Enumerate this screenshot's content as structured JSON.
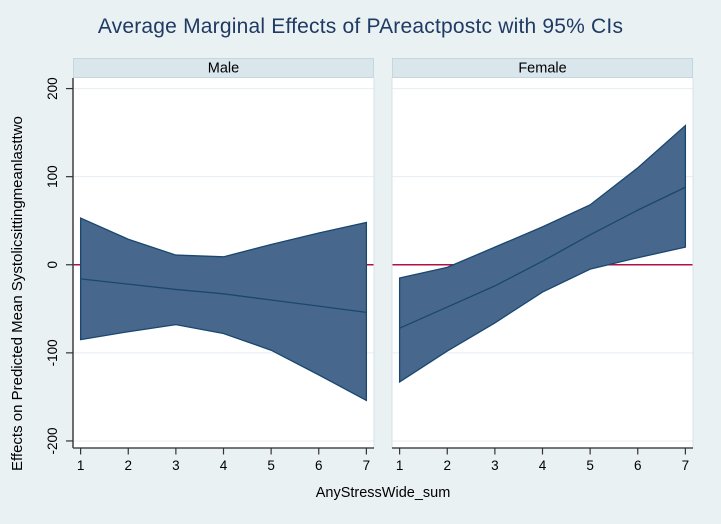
{
  "title": "Average Marginal Effects of PAreactpostc with 95% CIs",
  "axes": {
    "x_label": "AnyStressWide_sum",
    "y_label": "Effects on Predicted Mean Systolicsittingmeanlasttwo"
  },
  "colors": {
    "background": "#eaf1f3",
    "strip_bg": "#d9e6ec",
    "strip_border": "#c6d6de",
    "plot_bg": "#ffffff",
    "gridline": "#e4eef2",
    "panel_edge": "#d7e2e8",
    "band_fill": "#47688c",
    "band_edge": "#1a476f",
    "zero_line": "#b00f47",
    "axis_line": "#4a4a4a",
    "tick": "#333333",
    "title_color": "#1f3a63",
    "text": "#000000"
  },
  "chart_data": {
    "type": "area",
    "title": "Average Marginal Effects of PAreactpostc with 95% CIs",
    "xlabel": "AnyStressWide_sum",
    "ylabel": "Effects on Predicted Mean Systolicsittingmeanlasttwo",
    "grid": true,
    "legend": "none",
    "zero_line": 0,
    "x": [
      1,
      2,
      3,
      4,
      5,
      6,
      7
    ],
    "x_ticks": [
      1,
      2,
      3,
      4,
      5,
      6,
      7
    ],
    "y_ticks": [
      200,
      100,
      0,
      -100,
      -200
    ],
    "xlim": [
      0.84,
      7.16
    ],
    "ylim": [
      -208,
      212
    ],
    "panels": [
      {
        "label": "Male",
        "series": [
          {
            "name": "effect",
            "values": [
              -16,
              -22,
              -28,
              -33,
              -40,
              -47,
              -54
            ]
          },
          {
            "name": "ci_upper",
            "values": [
              53,
              29,
              11,
              9,
              23,
              36,
              48
            ]
          },
          {
            "name": "ci_lower",
            "values": [
              -85,
              -76,
              -68,
              -78,
              -97,
              -125,
              -154
            ]
          }
        ]
      },
      {
        "label": "Female",
        "series": [
          {
            "name": "effect",
            "values": [
              -72,
              -48,
              -24,
              4,
              34,
              62,
              88
            ]
          },
          {
            "name": "ci_upper",
            "values": [
              -15,
              -3,
              20,
              43,
              68,
              110,
              158
            ]
          },
          {
            "name": "ci_lower",
            "values": [
              -133,
              -98,
              -66,
              -31,
              -5,
              8,
              20
            ]
          }
        ]
      }
    ]
  }
}
